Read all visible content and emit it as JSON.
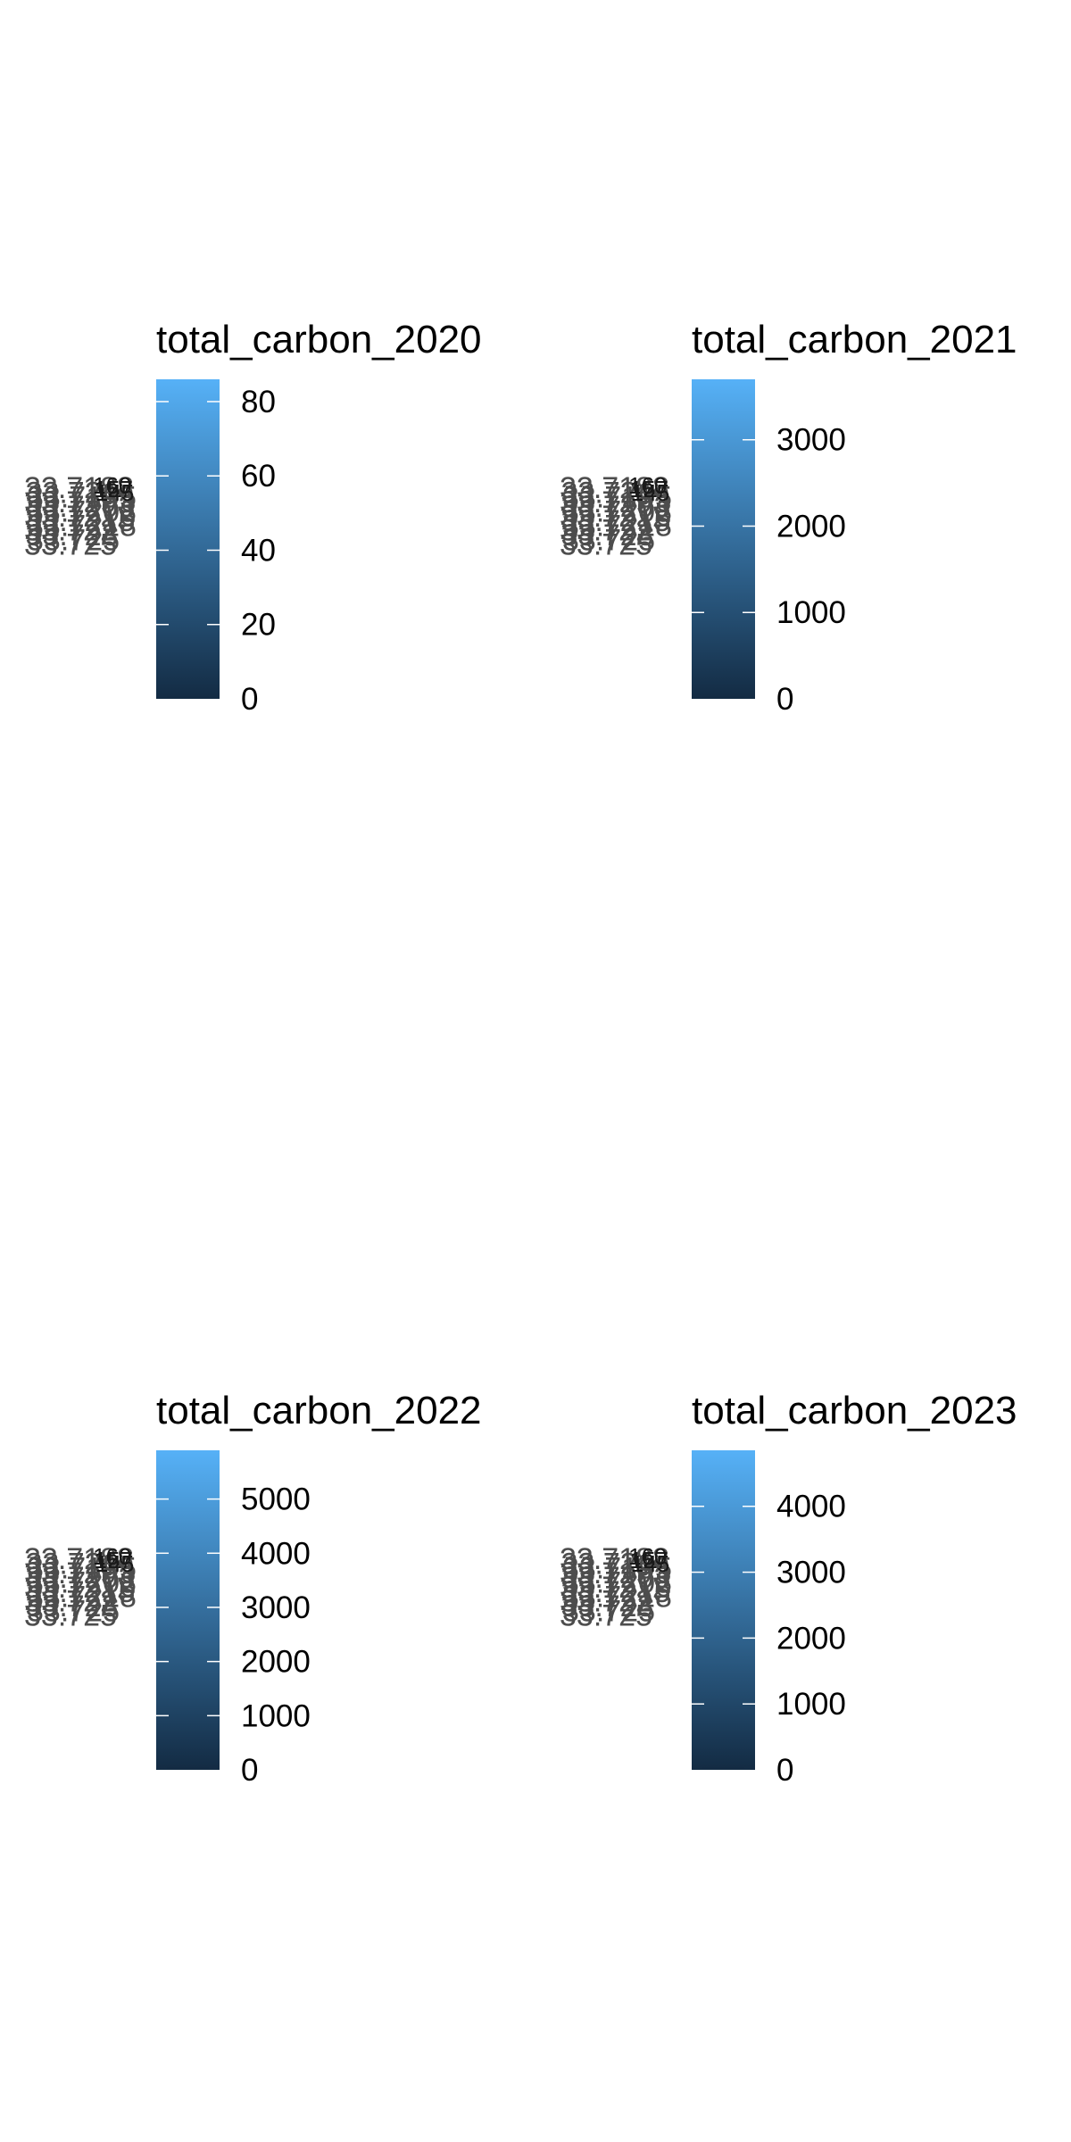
{
  "colors": {
    "gradient_low": "#132B43",
    "gradient_high": "#56B1F7",
    "label_gray": "#4d4d4d",
    "tick_mark": "#ffffff",
    "background": "#ffffff"
  },
  "chart_data": [
    {
      "type": "heatmap",
      "legend_title": "total_carbon_2020",
      "legend_position": "right",
      "colorbar_range": [
        0,
        86
      ],
      "colorbar_ticks": [
        0,
        20,
        40,
        60,
        80
      ],
      "colorbar_tick_labels": [
        "0",
        "20",
        "40",
        "60",
        "80"
      ],
      "overlapping_axis_labels": [
        "33.7188",
        "33.721",
        "33.7195",
        "33.7193",
        "33.7203",
        "33.7208",
        "33.7212",
        "33.7215",
        "33.7218",
        "33.722",
        "33.723",
        "33.725",
        "33.725"
      ],
      "overlapping_tick_labels": [
        "160",
        "157",
        "145"
      ]
    },
    {
      "type": "heatmap",
      "legend_title": "total_carbon_2021",
      "legend_position": "right",
      "colorbar_range": [
        0,
        3700
      ],
      "colorbar_ticks": [
        0,
        1000,
        2000,
        3000
      ],
      "colorbar_tick_labels": [
        "0",
        "1000",
        "2000",
        "3000"
      ],
      "overlapping_axis_labels": [
        "33.7188",
        "33.721",
        "33.7195",
        "33.7193",
        "33.7203",
        "33.7208",
        "33.7212",
        "33.7215",
        "33.7218",
        "33.722",
        "33.723",
        "33.725",
        "33.725"
      ],
      "overlapping_tick_labels": [
        "160",
        "157",
        "145"
      ]
    },
    {
      "type": "heatmap",
      "legend_title": "total_carbon_2022",
      "legend_position": "right",
      "colorbar_range": [
        0,
        5900
      ],
      "colorbar_ticks": [
        0,
        1000,
        2000,
        3000,
        4000,
        5000
      ],
      "colorbar_tick_labels": [
        "0",
        "1000",
        "2000",
        "3000",
        "4000",
        "5000"
      ],
      "overlapping_axis_labels": [
        "33.7188",
        "33.721",
        "33.7195",
        "33.7193",
        "33.7203",
        "33.7208",
        "33.7212",
        "33.7215",
        "33.7218",
        "33.722",
        "33.723",
        "33.725",
        "33.725"
      ],
      "overlapping_tick_labels": [
        "160",
        "157",
        "145"
      ]
    },
    {
      "type": "heatmap",
      "legend_title": "total_carbon_2023",
      "legend_position": "right",
      "colorbar_range": [
        0,
        4850
      ],
      "colorbar_ticks": [
        0,
        1000,
        2000,
        3000,
        4000
      ],
      "colorbar_tick_labels": [
        "0",
        "1000",
        "2000",
        "3000",
        "4000"
      ],
      "overlapping_axis_labels": [
        "33.7188",
        "33.721",
        "33.7195",
        "33.7193",
        "33.7203",
        "33.7208",
        "33.7212",
        "33.7215",
        "33.7218",
        "33.722",
        "33.723",
        "33.725",
        "33.725"
      ],
      "overlapping_tick_labels": [
        "160",
        "157",
        "145"
      ]
    }
  ]
}
